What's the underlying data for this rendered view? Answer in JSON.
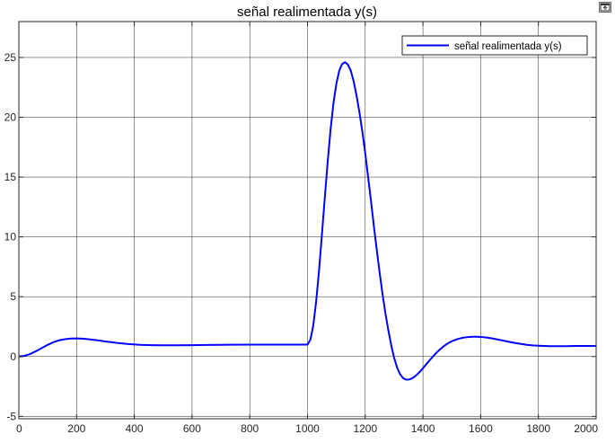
{
  "toolbar": {
    "undock_icon": "undock-icon"
  },
  "chart_data": {
    "type": "line",
    "title": "señal realimentada y(s)",
    "xlabel": "",
    "ylabel": "",
    "xlim": [
      0,
      2000
    ],
    "ylim": [
      -5.2,
      28
    ],
    "grid": true,
    "legend_position": "top-right",
    "x_ticks": [
      0,
      200,
      400,
      600,
      800,
      1000,
      1200,
      1400,
      1600,
      1800,
      2000
    ],
    "y_ticks": [
      -5,
      0,
      5,
      10,
      15,
      20,
      25
    ],
    "series": [
      {
        "name": "señal realimentada y(s)",
        "color": "#0000ff",
        "x": [
          0,
          20,
          40,
          60,
          80,
          100,
          120,
          140,
          160,
          180,
          200,
          220,
          240,
          260,
          280,
          300,
          340,
          380,
          420,
          460,
          500,
          550,
          600,
          650,
          700,
          750,
          800,
          850,
          900,
          950,
          1000,
          1010,
          1020,
          1030,
          1040,
          1050,
          1060,
          1070,
          1080,
          1090,
          1100,
          1110,
          1120,
          1130,
          1140,
          1150,
          1160,
          1170,
          1180,
          1190,
          1200,
          1210,
          1220,
          1230,
          1240,
          1250,
          1260,
          1270,
          1280,
          1290,
          1300,
          1310,
          1320,
          1330,
          1340,
          1350,
          1360,
          1370,
          1380,
          1390,
          1400,
          1410,
          1420,
          1430,
          1440,
          1450,
          1460,
          1470,
          1480,
          1490,
          1500,
          1520,
          1540,
          1560,
          1580,
          1600,
          1620,
          1640,
          1660,
          1680,
          1700,
          1720,
          1740,
          1760,
          1780,
          1800,
          1820,
          1840,
          1860,
          1880,
          1900,
          1925,
          1950,
          1975,
          2000
        ],
        "values": [
          0,
          0.06,
          0.22,
          0.45,
          0.72,
          0.98,
          1.2,
          1.36,
          1.45,
          1.5,
          1.51,
          1.49,
          1.45,
          1.39,
          1.33,
          1.26,
          1.14,
          1.04,
          0.98,
          0.95,
          0.94,
          0.94,
          0.95,
          0.97,
          0.98,
          0.99,
          1.0,
          1.0,
          1.0,
          1.0,
          1.0,
          1.4,
          2.6,
          4.6,
          7.2,
          10.2,
          13.3,
          16.3,
          19.0,
          21.2,
          22.8,
          23.9,
          24.45,
          24.6,
          24.4,
          23.9,
          23.0,
          21.8,
          20.4,
          18.8,
          17.0,
          15.0,
          13.0,
          10.9,
          8.9,
          7.0,
          5.2,
          3.6,
          2.2,
          0.95,
          -0.1,
          -0.9,
          -1.45,
          -1.78,
          -1.92,
          -1.93,
          -1.85,
          -1.7,
          -1.5,
          -1.25,
          -0.98,
          -0.68,
          -0.4,
          -0.12,
          0.15,
          0.4,
          0.62,
          0.82,
          1.0,
          1.15,
          1.28,
          1.46,
          1.58,
          1.64,
          1.66,
          1.64,
          1.59,
          1.51,
          1.42,
          1.32,
          1.22,
          1.13,
          1.05,
          0.98,
          0.93,
          0.9,
          0.88,
          0.87,
          0.87,
          0.87,
          0.87,
          0.88,
          0.88,
          0.88,
          0.88
        ]
      }
    ]
  }
}
